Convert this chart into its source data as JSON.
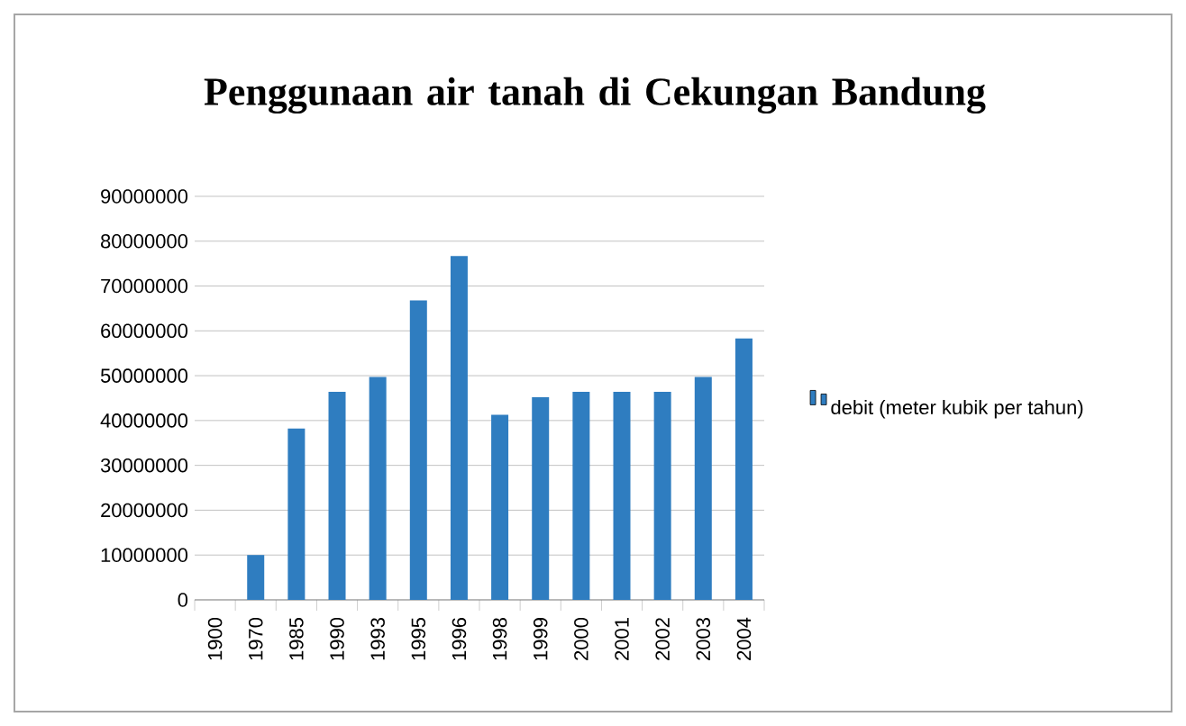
{
  "chart_data": {
    "type": "bar",
    "title": "Penggunaan air tanah di Cekungan Bandung",
    "categories": [
      "1900",
      "1970",
      "1985",
      "1990",
      "1993",
      "1995",
      "1996",
      "1998",
      "1999",
      "2000",
      "2001",
      "2002",
      "2003",
      "2004"
    ],
    "series": [
      {
        "name": "debit (meter kubik per tahun)",
        "color": "#2f7dc0",
        "values": [
          0,
          10000000,
          38200000,
          46400000,
          49700000,
          66800000,
          76700000,
          41300000,
          45200000,
          46400000,
          46400000,
          46400000,
          49700000,
          58300000
        ]
      }
    ],
    "ylim": [
      0,
      90000000
    ],
    "yticks": [
      0,
      10000000,
      20000000,
      30000000,
      40000000,
      50000000,
      60000000,
      70000000,
      80000000,
      90000000
    ],
    "grid": "y",
    "legend": "right"
  }
}
